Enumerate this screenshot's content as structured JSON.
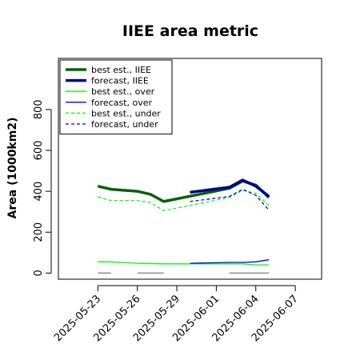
{
  "chart_data": {
    "type": "line",
    "title": "IIEE area metric",
    "xlabel": "",
    "ylabel": "Area (1000km2)",
    "x_ticks": [
      "2025-05-23",
      "2025-05-26",
      "2025-05-29",
      "2025-06-01",
      "2025-06-04",
      "2025-06-07"
    ],
    "highlight_tick": "2025-05-29",
    "highlight_color": "#228b22",
    "xlim": [
      "2025-05-20",
      "2025-06-09"
    ],
    "ylim": [
      -30,
      1050
    ],
    "y_ticks": [
      0,
      200,
      400,
      600,
      800
    ],
    "legend_position": "top-left",
    "grid": false,
    "series": [
      {
        "name": "best est., IIEE",
        "color": "#006400",
        "width": 3.5,
        "dash": "solid",
        "points": [
          [
            "2025-05-23",
            425
          ],
          [
            "2025-05-24",
            410
          ],
          [
            "2025-05-26",
            400
          ],
          [
            "2025-05-27",
            385
          ],
          [
            "2025-05-28",
            350
          ],
          [
            "2025-06-02",
            415
          ],
          [
            "2025-06-03",
            450
          ],
          [
            "2025-06-04",
            430
          ],
          [
            "2025-06-05",
            370
          ]
        ]
      },
      {
        "name": "forecast, IIEE",
        "color": "#00008b",
        "width": 3.5,
        "dash": "solid",
        "points": [
          [
            "2025-05-30",
            395
          ],
          [
            "2025-06-02",
            420
          ],
          [
            "2025-06-03",
            455
          ],
          [
            "2025-06-04",
            425
          ],
          [
            "2025-06-05",
            375
          ]
        ]
      },
      {
        "name": "best est., over",
        "color": "#00ff00",
        "width": 1.3,
        "dash": "solid",
        "points": [
          [
            "2025-05-23",
            55
          ],
          [
            "2025-05-24",
            55
          ],
          [
            "2025-05-26",
            48
          ],
          [
            "2025-05-28",
            45
          ],
          [
            "2025-06-02",
            45
          ],
          [
            "2025-06-03",
            45
          ],
          [
            "2025-06-04",
            40
          ],
          [
            "2025-06-05",
            40
          ]
        ]
      },
      {
        "name": "forecast, over",
        "color": "#0000ff",
        "width": 1.3,
        "dash": "solid",
        "points": [
          [
            "2025-05-30",
            48
          ],
          [
            "2025-06-02",
            52
          ],
          [
            "2025-06-03",
            52
          ],
          [
            "2025-06-04",
            55
          ],
          [
            "2025-06-05",
            65
          ]
        ]
      },
      {
        "name": "best est., under",
        "color": "#00ff00",
        "width": 1.3,
        "dash": "4,3",
        "points": [
          [
            "2025-05-23",
            372
          ],
          [
            "2025-05-24",
            355
          ],
          [
            "2025-05-26",
            355
          ],
          [
            "2025-05-27",
            345
          ],
          [
            "2025-05-28",
            305
          ],
          [
            "2025-06-02",
            370
          ],
          [
            "2025-06-03",
            405
          ],
          [
            "2025-06-04",
            390
          ],
          [
            "2025-06-05",
            330
          ]
        ]
      },
      {
        "name": "forecast, under",
        "color": "#0000ff",
        "width": 1.3,
        "dash": "4,3",
        "points": [
          [
            "2025-05-30",
            350
          ],
          [
            "2025-06-02",
            375
          ],
          [
            "2025-06-03",
            410
          ],
          [
            "2025-06-04",
            380
          ],
          [
            "2025-06-05",
            308
          ]
        ]
      },
      {
        "name": "",
        "color": "#888888",
        "width": 1.3,
        "dash": "solid",
        "legend": false,
        "points": [
          [
            "2025-05-23",
            0
          ],
          [
            "2025-05-24",
            0
          ]
        ]
      },
      {
        "name": "",
        "color": "#888888",
        "width": 1.3,
        "dash": "solid",
        "legend": false,
        "points": [
          [
            "2025-05-26",
            0
          ],
          [
            "2025-05-28",
            0
          ]
        ]
      },
      {
        "name": "",
        "color": "#888888",
        "width": 1.3,
        "dash": "solid",
        "legend": false,
        "points": [
          [
            "2025-06-02",
            0
          ],
          [
            "2025-06-05",
            0
          ]
        ]
      }
    ]
  }
}
